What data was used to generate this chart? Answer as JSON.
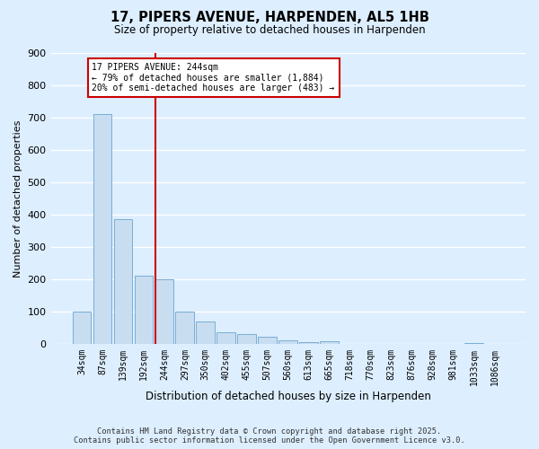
{
  "title": "17, PIPERS AVENUE, HARPENDEN, AL5 1HB",
  "subtitle": "Size of property relative to detached houses in Harpenden",
  "xlabel": "Distribution of detached houses by size in Harpenden",
  "ylabel": "Number of detached properties",
  "bar_labels": [
    "34sqm",
    "87sqm",
    "139sqm",
    "192sqm",
    "244sqm",
    "297sqm",
    "350sqm",
    "402sqm",
    "455sqm",
    "507sqm",
    "560sqm",
    "613sqm",
    "665sqm",
    "718sqm",
    "770sqm",
    "823sqm",
    "876sqm",
    "928sqm",
    "981sqm",
    "1033sqm",
    "1086sqm"
  ],
  "bar_values": [
    100,
    710,
    385,
    210,
    200,
    100,
    70,
    35,
    30,
    22,
    10,
    5,
    7,
    1,
    0,
    0,
    0,
    0,
    0,
    2,
    1
  ],
  "bar_color": "#c8ddf0",
  "bar_edge_color": "#7aadd4",
  "marker_index": 4,
  "marker_label_line1": "17 PIPERS AVENUE: 244sqm",
  "marker_label_line2": "← 79% of detached houses are smaller (1,884)",
  "marker_label_line3": "20% of semi-detached houses are larger (483) →",
  "marker_color": "#cc0000",
  "ylim": [
    0,
    900
  ],
  "yticks": [
    0,
    100,
    200,
    300,
    400,
    500,
    600,
    700,
    800,
    900
  ],
  "bg_color": "#ddeeff",
  "footer_line1": "Contains HM Land Registry data © Crown copyright and database right 2025.",
  "footer_line2": "Contains public sector information licensed under the Open Government Licence v3.0.",
  "annotation_box_color": "#ffffff",
  "annotation_box_edge": "#cc0000"
}
